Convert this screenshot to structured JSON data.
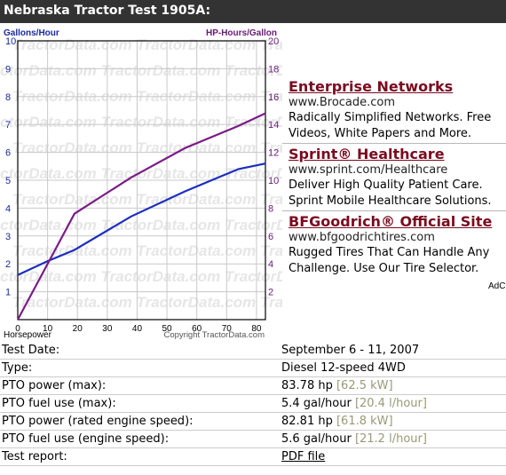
{
  "title": "Nebraska Tractor Test 1905A:",
  "chart_data": {
    "type": "line",
    "title": "",
    "xlabel": "Horsepower",
    "ylabel_left": "Gallons/Hour",
    "ylabel_right": "HP-Hours/Gallon",
    "x_ticks": [
      0,
      10,
      20,
      30,
      40,
      50,
      60,
      70,
      80
    ],
    "left_ticks": [
      1,
      2,
      3,
      4,
      5,
      6,
      7,
      8,
      9,
      10
    ],
    "right_ticks": [
      2,
      4,
      6,
      8,
      10,
      12,
      14,
      16,
      18,
      20
    ],
    "xlim": [
      0,
      83
    ],
    "ylim_left": [
      0,
      10
    ],
    "ylim_right": [
      0,
      20
    ],
    "grid": true,
    "series": [
      {
        "axis": "left",
        "color": "#1c2ebf",
        "x": [
          0,
          10,
          19,
          38,
          56,
          74,
          83
        ],
        "y": [
          1.6,
          2.1,
          2.5,
          3.7,
          4.6,
          5.4,
          5.6
        ]
      },
      {
        "axis": "right",
        "color": "#7a1c86",
        "x": [
          0,
          19,
          38,
          56,
          74,
          83
        ],
        "y": [
          0,
          7.6,
          10.2,
          12.3,
          13.9,
          14.8
        ]
      }
    ],
    "watermark": "TractorData.com",
    "copyright": "Copyright TractorData.com"
  },
  "ads": [
    {
      "title": "Enterprise Networks",
      "url": "www.Brocade.com",
      "line1": "Radically Simplified Networks. Free",
      "line2": "Videos, White Papers and More."
    },
    {
      "title": "Sprint® Healthcare",
      "url": "www.sprint.com/Healthcare",
      "line1": "Deliver High Quality Patient Care.",
      "line2": "Sprint Mobile Healthcare Solutions."
    },
    {
      "title": "BFGoodrich® Official Site",
      "url": "www.bfgoodrichtires.com",
      "line1": "Rugged Tires That Can Handle Any",
      "line2": "Challenge. Use Our Tire Selector."
    }
  ],
  "ad_choices": "AdC",
  "specs": [
    {
      "label": "Test Date:",
      "value": "September 6 - 11, 2007",
      "metric": ""
    },
    {
      "label": "Type:",
      "value": "Diesel 12-speed 4WD",
      "metric": ""
    },
    {
      "label": "PTO power (max):",
      "value": "83.78 hp",
      "metric": "[62.5 kW]"
    },
    {
      "label": "PTO fuel use (max):",
      "value": "5.4 gal/hour",
      "metric": "[20.4 l/hour]"
    },
    {
      "label": "PTO power (rated engine speed):",
      "value": "82.81 hp",
      "metric": "[61.8 kW]"
    },
    {
      "label": "PTO fuel use (engine speed):",
      "value": "5.6 gal/hour",
      "metric": "[21.2 l/hour]"
    },
    {
      "label": "Test report:",
      "value": "PDF file",
      "metric": ""
    }
  ]
}
